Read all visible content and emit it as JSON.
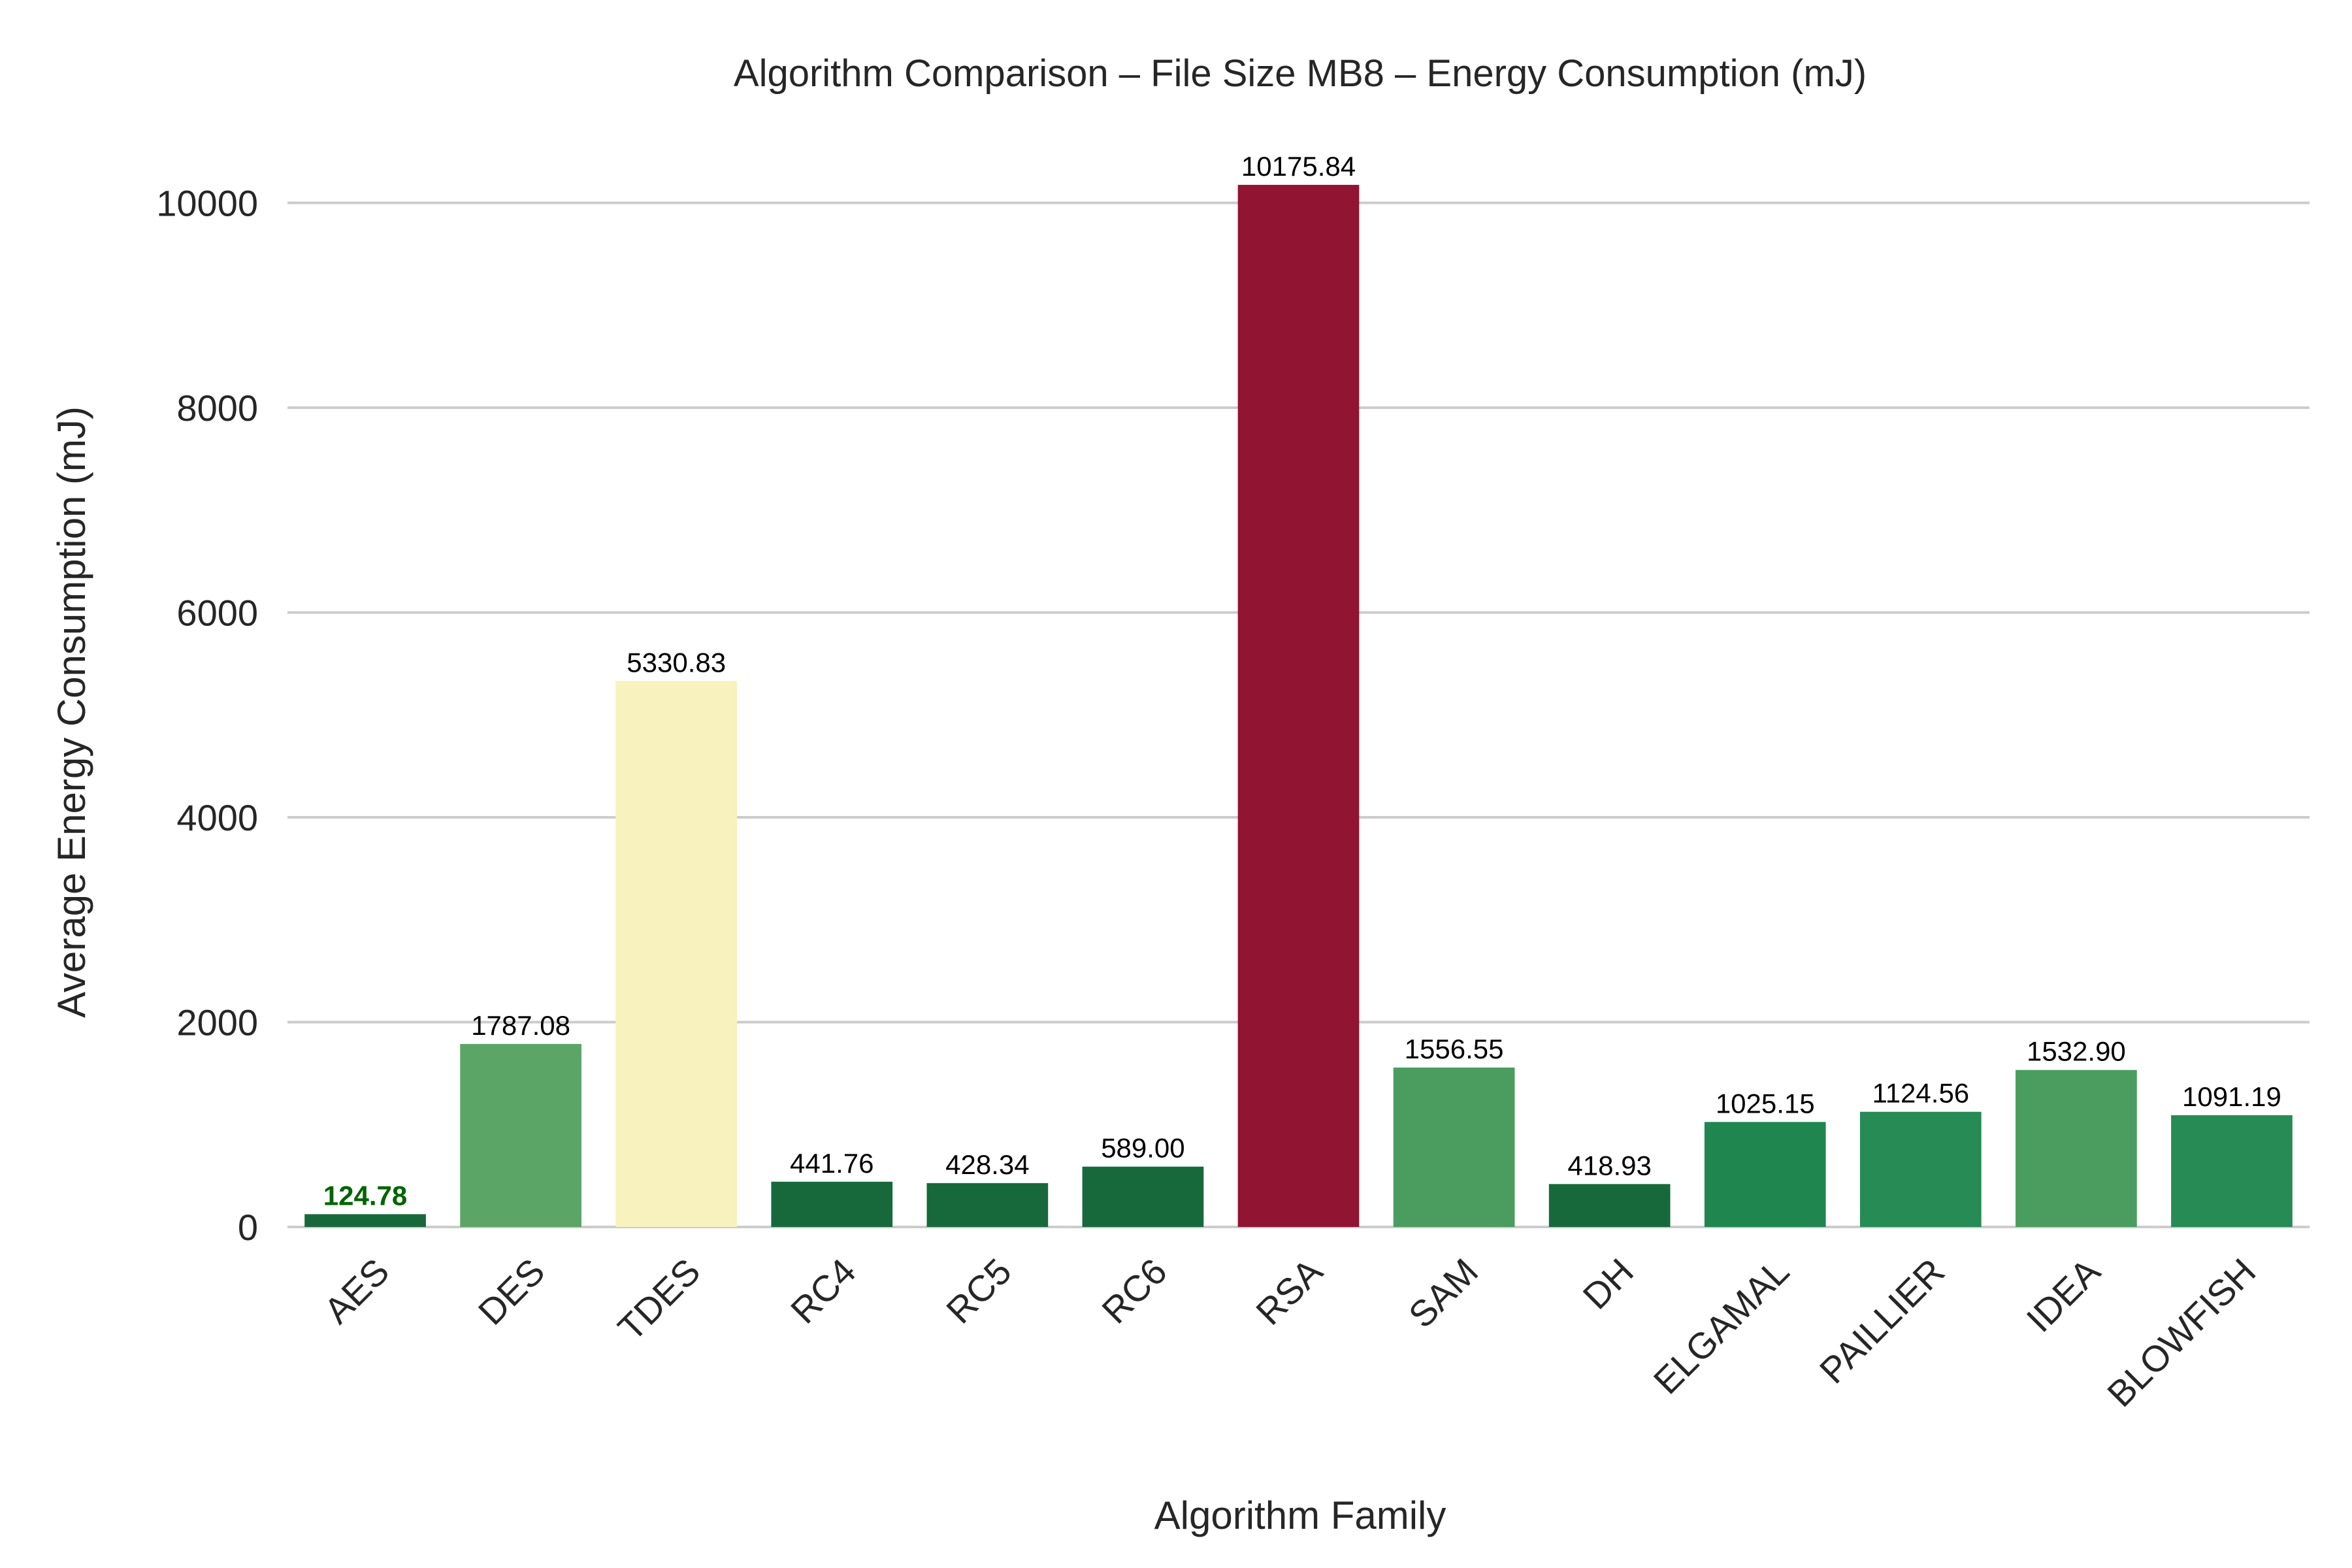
{
  "chart_data": {
    "type": "bar",
    "title": "Algorithm Comparison – File Size MB8 – Energy Consumption (mJ)",
    "xlabel": "Algorithm Family",
    "ylabel": "Average Energy Consumption (mJ)",
    "ylim": [
      0,
      10700
    ],
    "yticks": [
      0,
      2000,
      4000,
      6000,
      8000,
      10000
    ],
    "grid": true,
    "categories": [
      "AES",
      "DES",
      "TDES",
      "RC4",
      "RC5",
      "RC6",
      "RSA",
      "SAM",
      "DH",
      "ELGAMAL",
      "PAILLIER",
      "IDEA",
      "BLOWFISH"
    ],
    "values": [
      124.78,
      1787.08,
      5330.83,
      441.76,
      428.34,
      589.0,
      10175.84,
      1556.55,
      418.93,
      1025.15,
      1124.56,
      1532.9,
      1091.19
    ],
    "value_labels": [
      "124.78",
      "1787.08",
      "5330.83",
      "441.76",
      "428.34",
      "589.00",
      "10175.84",
      "1556.55",
      "418.93",
      "1025.15",
      "1124.56",
      "1532.90",
      "1091.19"
    ],
    "colors": [
      "#17693b",
      "#5ba566",
      "#f7f2be",
      "#17693b",
      "#17693b",
      "#17693b",
      "#911432",
      "#4a9d5e",
      "#17693b",
      "#208650",
      "#268b54",
      "#4a9d5e",
      "#268b54"
    ],
    "highlight_color": "#006400"
  }
}
